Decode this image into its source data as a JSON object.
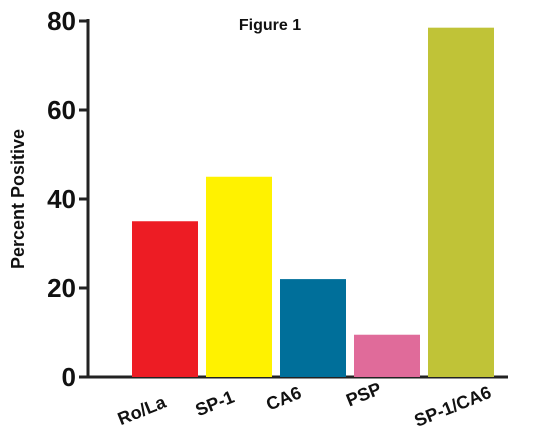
{
  "chart_data": {
    "type": "bar",
    "title": "Figure 1",
    "xlabel": "",
    "ylabel": "Percent Positive",
    "categories": [
      "Ro/La",
      "SP-1",
      "CA6",
      "PSP",
      "SP-1/CA6"
    ],
    "values": [
      35,
      45,
      22,
      9.5,
      78.5
    ],
    "colors": [
      "#ed1c24",
      "#fff200",
      "#006f9a",
      "#e06b9a",
      "#c0c337"
    ],
    "ylim": [
      0,
      80
    ],
    "yticks": [
      0,
      20,
      40,
      60,
      80
    ],
    "grid": false,
    "legend": "none"
  }
}
